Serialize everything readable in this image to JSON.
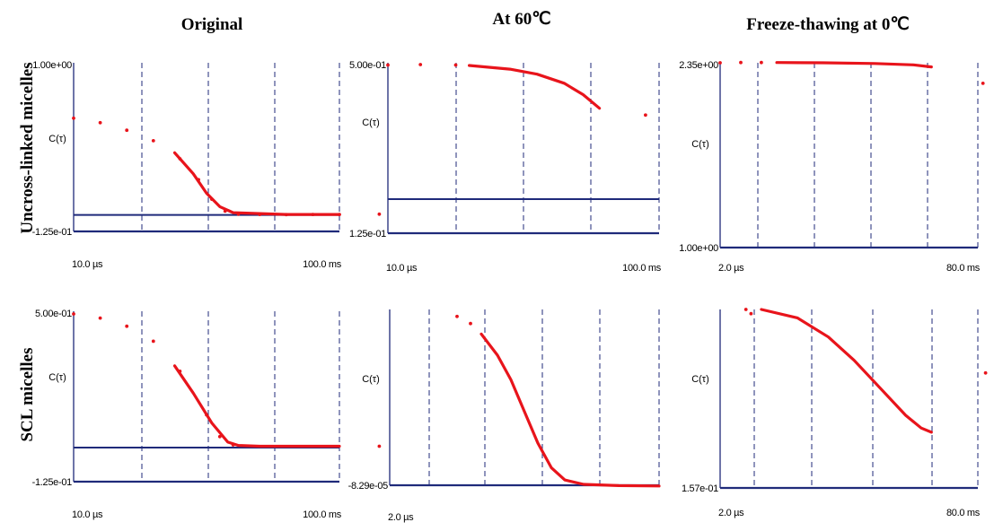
{
  "figure": {
    "column_titles": [
      "Original",
      "At 60℃",
      "Freeze-thawing at 0℃"
    ],
    "row_titles": [
      "Uncross-linked micelles",
      "SCL micelles"
    ]
  },
  "colors": {
    "data": "#e8141b",
    "axis": "#1f2a7a",
    "text": "#000000"
  },
  "chart_data": [
    {
      "type": "scatter",
      "id": "uncross-original",
      "ylabel": "C(τ)",
      "y_top_label": "1.00e+00",
      "y_bottom_label": "-1.25e-01",
      "x_start_label": "10.0 µs",
      "x_end_label": "100.0 ms",
      "ylim": [
        -0.125,
        1.0
      ],
      "baseline": -0.015,
      "points": [
        [
          0.0,
          0.63
        ],
        [
          0.1,
          0.6
        ],
        [
          0.2,
          0.55
        ],
        [
          0.3,
          0.48
        ],
        [
          0.4,
          0.36
        ],
        [
          0.47,
          0.22
        ],
        [
          0.52,
          0.09
        ],
        [
          0.57,
          0.01
        ],
        [
          0.62,
          -0.01
        ],
        [
          0.7,
          -0.012
        ],
        [
          0.8,
          -0.013
        ],
        [
          0.9,
          -0.012
        ],
        [
          1.0,
          -0.012
        ],
        [
          1.15,
          -0.01
        ]
      ],
      "dense": [
        [
          0.38,
          0.4
        ],
        [
          0.45,
          0.26
        ],
        [
          0.5,
          0.13
        ],
        [
          0.55,
          0.04
        ],
        [
          0.6,
          0.0
        ],
        [
          0.8,
          -0.012
        ],
        [
          1.0,
          -0.012
        ]
      ]
    },
    {
      "type": "scatter",
      "id": "uncross-60c",
      "ylabel": "C(τ)",
      "y_top_label": "5.00e-01",
      "y_bottom_label": "1.25e-01",
      "x_start_label": "10.0 µs",
      "x_end_label": "100.0 ms",
      "ylim": [
        0.125,
        0.5
      ],
      "baseline": 0.2,
      "points": [
        [
          0.0,
          0.495
        ],
        [
          0.12,
          0.496
        ],
        [
          0.25,
          0.495
        ],
        [
          0.95,
          0.385
        ]
      ],
      "dense": [
        [
          0.3,
          0.494
        ],
        [
          0.45,
          0.486
        ],
        [
          0.55,
          0.475
        ],
        [
          0.65,
          0.455
        ],
        [
          0.72,
          0.43
        ],
        [
          0.78,
          0.4
        ]
      ]
    },
    {
      "type": "scatter",
      "id": "uncross-freeze",
      "ylabel": "C(τ)",
      "y_top_label": "2.35e+00",
      "y_bottom_label": "1.00e+00",
      "x_start_label": "2.0 µs",
      "x_end_label": "80.0 ms",
      "ylim": [
        1.0,
        2.35
      ],
      "baseline": null,
      "points": [
        [
          0.0,
          2.35
        ],
        [
          0.08,
          2.352
        ],
        [
          0.16,
          2.352
        ],
        [
          1.02,
          2.2
        ]
      ],
      "dense": [
        [
          0.22,
          2.352
        ],
        [
          0.4,
          2.35
        ],
        [
          0.6,
          2.345
        ],
        [
          0.75,
          2.335
        ],
        [
          0.82,
          2.32
        ]
      ]
    },
    {
      "type": "scatter",
      "id": "scl-original",
      "ylabel": "C(τ)",
      "y_top_label": "5.00e-01",
      "y_bottom_label": "-1.25e-01",
      "x_start_label": "10.0 µs",
      "x_end_label": "100.0 ms",
      "ylim": [
        -0.125,
        0.5
      ],
      "baseline": 0.0,
      "points": [
        [
          0.0,
          0.49
        ],
        [
          0.1,
          0.475
        ],
        [
          0.2,
          0.445
        ],
        [
          0.3,
          0.39
        ],
        [
          0.4,
          0.28
        ],
        [
          0.5,
          0.12
        ],
        [
          0.55,
          0.04
        ],
        [
          0.6,
          0.01
        ],
        [
          1.15,
          0.005
        ]
      ],
      "dense": [
        [
          0.38,
          0.3
        ],
        [
          0.45,
          0.2
        ],
        [
          0.52,
          0.09
        ],
        [
          0.58,
          0.02
        ],
        [
          0.62,
          0.008
        ],
        [
          0.7,
          0.005
        ],
        [
          0.8,
          0.005
        ],
        [
          0.9,
          0.005
        ],
        [
          1.0,
          0.005
        ]
      ]
    },
    {
      "type": "scatter",
      "id": "scl-60c",
      "ylabel": "C(τ)",
      "y_top_label": "",
      "y_bottom_label": "-8.29e-05",
      "x_start_label": "2.0 µs",
      "x_end_label": "",
      "ylim": [
        0.0,
        1.0
      ],
      "baseline": 0.0,
      "points": [
        [
          0.25,
          0.96
        ],
        [
          0.3,
          0.92
        ]
      ],
      "dense": [
        [
          0.34,
          0.86
        ],
        [
          0.4,
          0.74
        ],
        [
          0.45,
          0.6
        ],
        [
          0.5,
          0.42
        ],
        [
          0.55,
          0.24
        ],
        [
          0.6,
          0.1
        ],
        [
          0.65,
          0.03
        ],
        [
          0.72,
          0.005
        ],
        [
          0.85,
          -0.002
        ],
        [
          1.0,
          -0.004
        ]
      ]
    },
    {
      "type": "scatter",
      "id": "scl-freeze",
      "ylabel": "C(τ)",
      "y_top_label": "",
      "y_bottom_label": "1.57e-01",
      "x_start_label": "2.0 µs",
      "x_end_label": "80.0 ms",
      "ylim": [
        0.157,
        1.0
      ],
      "baseline": null,
      "points": [
        [
          0.1,
          1.0
        ],
        [
          0.12,
          0.98
        ],
        [
          1.03,
          0.7
        ]
      ],
      "dense": [
        [
          0.16,
          1.0
        ],
        [
          0.3,
          0.96
        ],
        [
          0.42,
          0.87
        ],
        [
          0.52,
          0.76
        ],
        [
          0.62,
          0.63
        ],
        [
          0.72,
          0.5
        ],
        [
          0.78,
          0.44
        ],
        [
          0.82,
          0.42
        ]
      ]
    }
  ]
}
